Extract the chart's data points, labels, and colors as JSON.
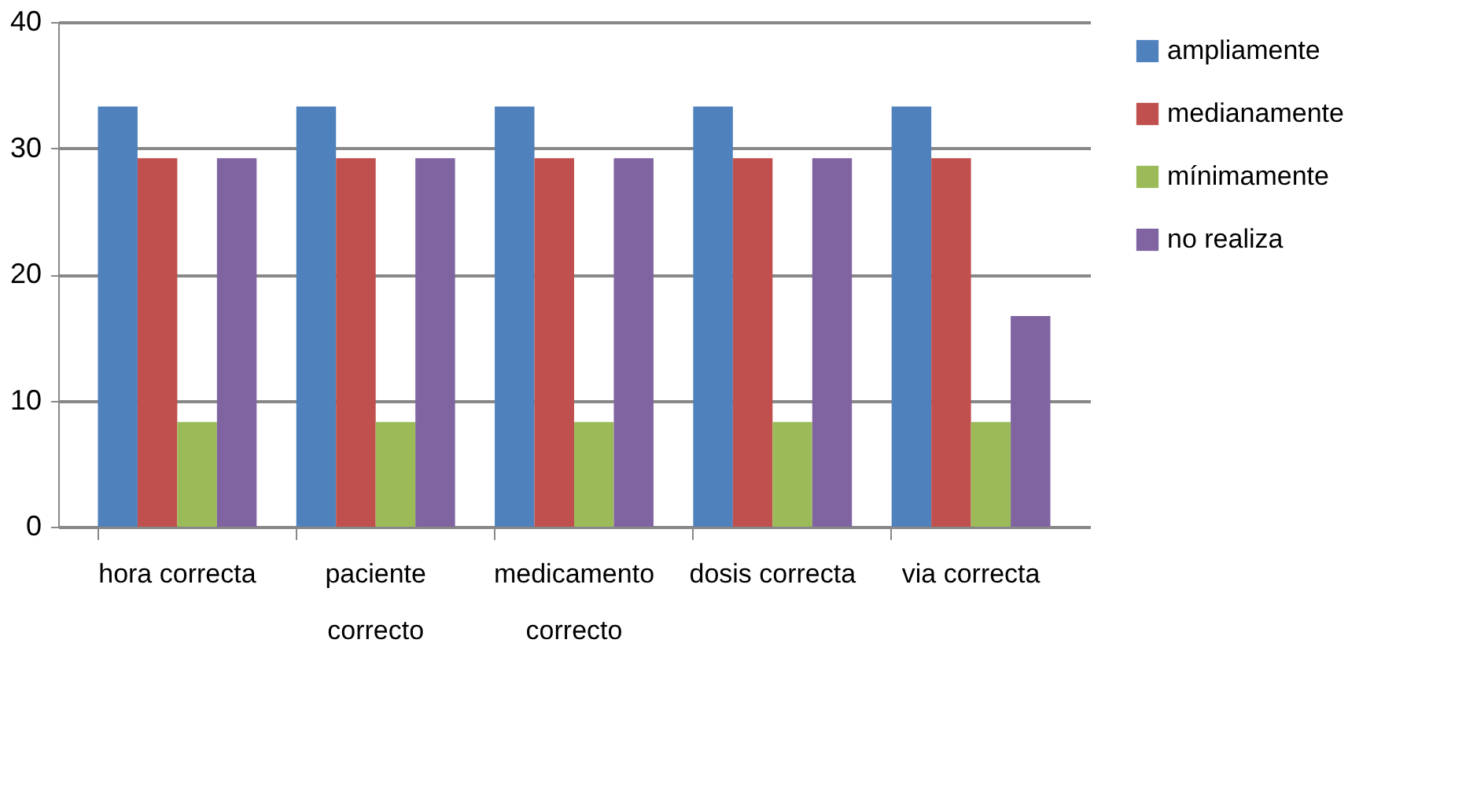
{
  "chart_data": {
    "type": "bar",
    "categories": [
      "hora correcta",
      "paciente correcto",
      "medicamento correcto",
      "dosis correcta",
      "via correcta"
    ],
    "series": [
      {
        "name": "ampliamente",
        "color": "#4f81bd",
        "values": [
          33.3,
          33.3,
          33.3,
          33.3,
          33.3
        ]
      },
      {
        "name": "medianamente",
        "color": "#c0504d",
        "values": [
          29.2,
          29.2,
          29.2,
          29.2,
          29.2
        ]
      },
      {
        "name": "mínimamente",
        "color": "#9bbb59",
        "values": [
          8.3,
          8.3,
          8.3,
          8.3,
          8.3
        ]
      },
      {
        "name": "no realiza",
        "color": "#8064a2",
        "values": [
          29.2,
          29.2,
          29.2,
          29.2,
          16.7
        ]
      }
    ],
    "ylim": [
      0,
      40
    ],
    "yticks": [
      0,
      10,
      20,
      30,
      40
    ],
    "grid": "y",
    "legend": "right"
  }
}
